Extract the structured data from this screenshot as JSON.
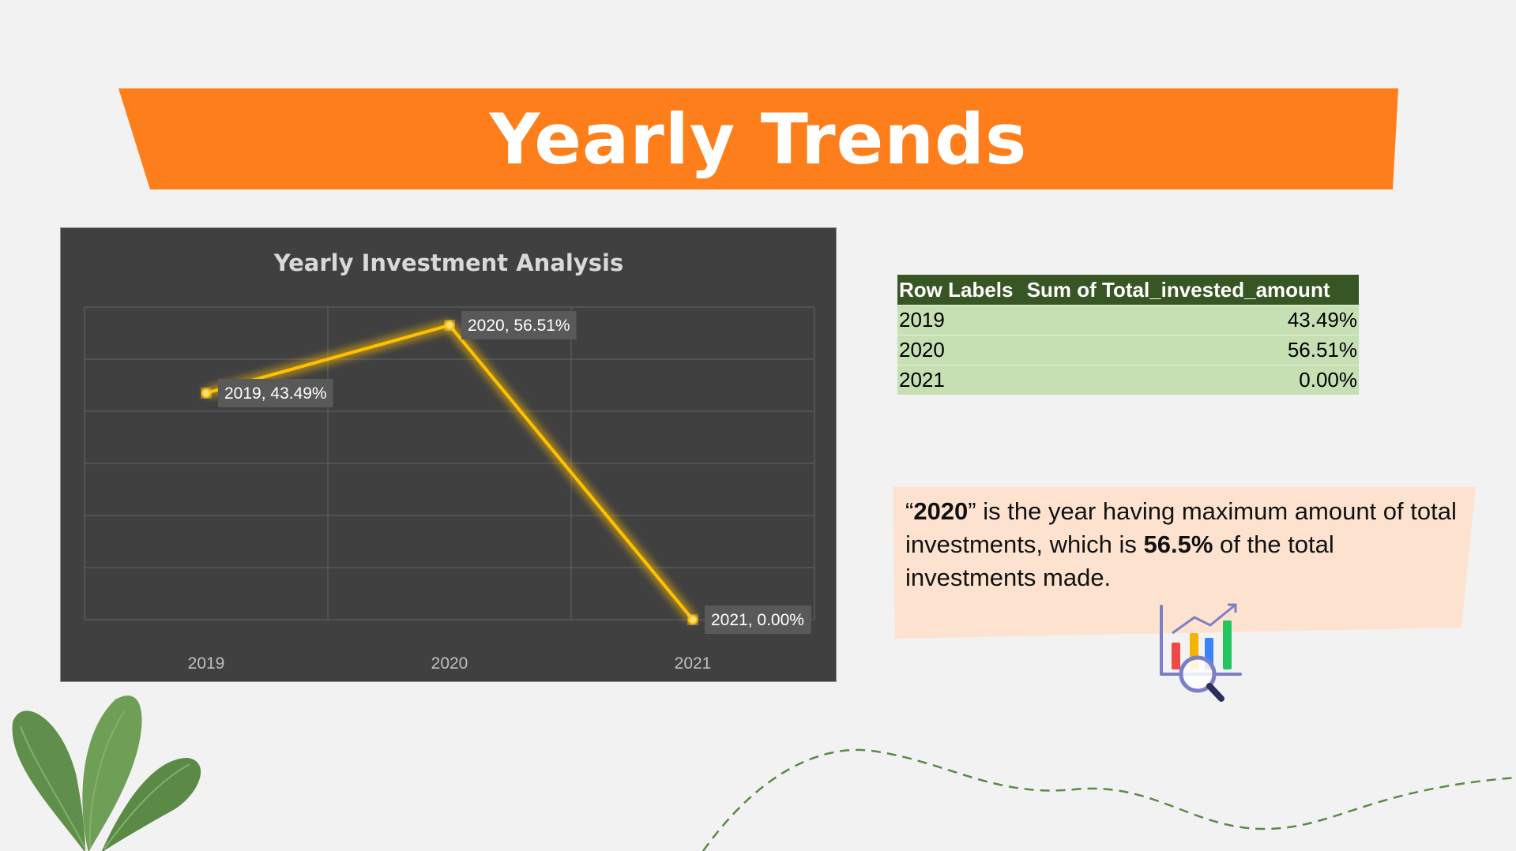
{
  "header": {
    "title": "Yearly Trends"
  },
  "chart_data": {
    "type": "line",
    "title": "Yearly Investment Analysis",
    "x": [
      "2019",
      "2020",
      "2021"
    ],
    "series": [
      {
        "values": [
          43.49,
          56.51,
          0.0
        ],
        "color": "#ffc000"
      }
    ],
    "data_labels": [
      "2019, 43.49%",
      "2020, 56.51%",
      "2021, 0.00%"
    ],
    "ylim": [
      0,
      60
    ],
    "grid": true,
    "legend": "none",
    "colors": {
      "background": "#404040",
      "gridline": "#595959",
      "line": "#ffc000"
    }
  },
  "pivot_table": {
    "headers": [
      "Row Labels",
      "Sum of Total_invested_amount"
    ],
    "rows": [
      [
        "2019",
        "43.49%"
      ],
      [
        "2020",
        "56.51%"
      ],
      [
        "2021",
        "0.00%"
      ]
    ]
  },
  "insight": {
    "open_quote": "“",
    "year": "2020",
    "text_1": "” is the year having maximum amount of total investments, which is ",
    "percent": "56.5%",
    "text_2": " of the total investments made."
  },
  "icons": [
    "analytics-chart-magnifier-icon",
    "plant-leaves-decoration",
    "dashed-curve-decoration"
  ],
  "colors": {
    "banner": "#fd7e1a",
    "callout": "#fde3cf",
    "table_header": "#375623",
    "table_rows": "#c6e0b4"
  }
}
